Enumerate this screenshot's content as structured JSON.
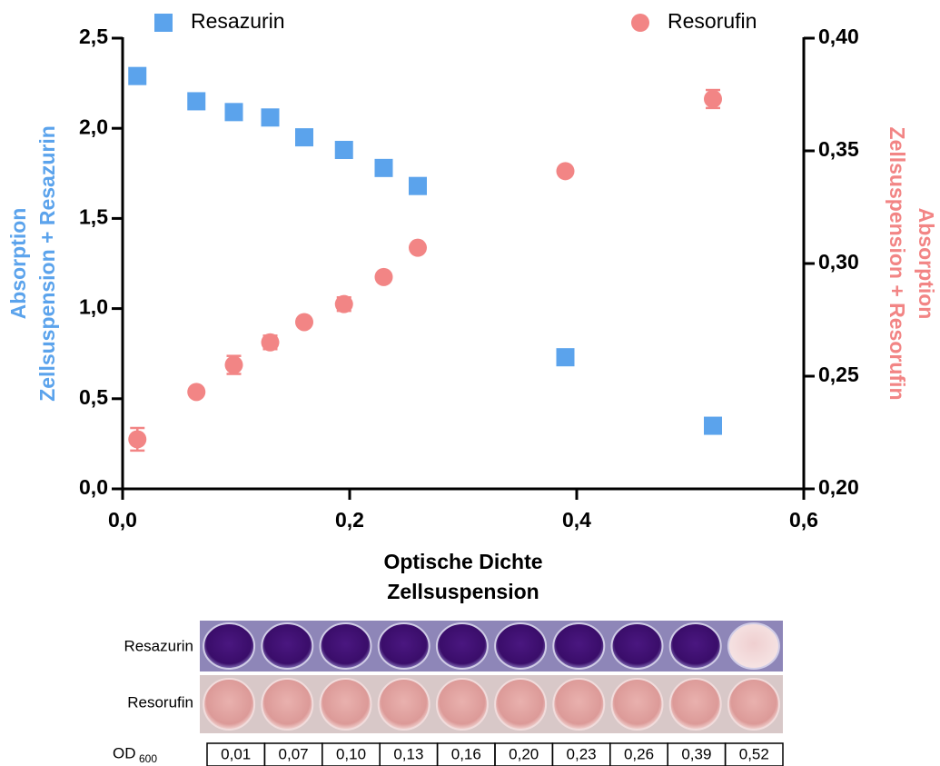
{
  "chart_data": {
    "type": "scatter",
    "x_label": [
      "Optische Dichte",
      "Zellsuspension"
    ],
    "y_label": [
      "Absorption",
      "Zellsuspension + Resazurin"
    ],
    "y2_label": [
      "Absorption",
      "Zellsuspension + Resorufin"
    ],
    "x": [
      0.013,
      0.065,
      0.098,
      0.13,
      0.16,
      0.195,
      0.23,
      0.26,
      0.39,
      0.52
    ],
    "series": [
      {
        "name": "Resazurin",
        "color": "#5ba3ec",
        "marker": "square",
        "values": [
          2.29,
          2.15,
          2.09,
          2.06,
          1.95,
          1.88,
          1.78,
          1.68,
          0.73,
          0.35
        ]
      },
      {
        "name": "Resorufin",
        "color": "#f28585",
        "marker": "circle",
        "axis": "y2",
        "values": [
          0.222,
          0.243,
          0.255,
          0.265,
          0.274,
          0.282,
          0.294,
          0.307,
          0.341,
          0.373
        ],
        "errors": [
          0.005,
          0,
          0.004,
          0.003,
          0,
          0.003,
          0,
          0,
          0,
          0.004
        ]
      }
    ],
    "xlim": [
      0,
      0.6
    ],
    "xticks": [
      {
        "value": 0,
        "label": "0,0"
      },
      {
        "value": 0.2,
        "label": "0,2"
      },
      {
        "value": 0.4,
        "label": "0,4"
      },
      {
        "value": 0.6,
        "label": "0,6"
      }
    ],
    "ylim": [
      0,
      2.5
    ],
    "yticks": [
      {
        "value": 0,
        "label": "0,0"
      },
      {
        "value": 0.5,
        "label": "0,5"
      },
      {
        "value": 1,
        "label": "1,0"
      },
      {
        "value": 1.5,
        "label": "1,5"
      },
      {
        "value": 2,
        "label": "2,0"
      },
      {
        "value": 2.5,
        "label": "2,5"
      }
    ],
    "y2lim": [
      0.2,
      0.4
    ],
    "y2ticks": [
      {
        "value": 0.2,
        "label": "0,20"
      },
      {
        "value": 0.25,
        "label": "0,25"
      },
      {
        "value": 0.3,
        "label": "0,30"
      },
      {
        "value": 0.35,
        "label": "0,35"
      },
      {
        "value": 0.4,
        "label": "0,40"
      }
    ],
    "legend": "top"
  },
  "strip": {
    "row_labels": [
      "Resazurin",
      "Resorufin"
    ],
    "od_label": "OD",
    "od_subscript": "600",
    "od_values": [
      "0,01",
      "0,07",
      "0,10",
      "0,13",
      "0,16",
      "0,20",
      "0,23",
      "0,26",
      "0,39",
      "0,52"
    ]
  }
}
